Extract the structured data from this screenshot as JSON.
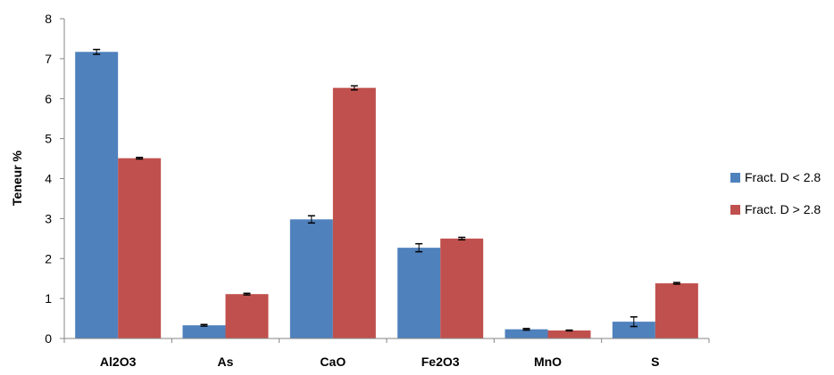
{
  "chart_data": {
    "type": "bar",
    "title": "",
    "xlabel": "",
    "ylabel": "Teneur %",
    "ylim": [
      0,
      8
    ],
    "yticks": [
      0,
      1,
      2,
      3,
      4,
      5,
      6,
      7,
      8
    ],
    "grid": false,
    "legend_position": "right",
    "categories": [
      "Al2O3",
      "As",
      "CaO",
      "Fe2O3",
      "MnO",
      "S"
    ],
    "series": [
      {
        "name": "Fract. D < 2.8",
        "color": "#4F81BD",
        "values": [
          7.17,
          0.33,
          2.98,
          2.27,
          0.23,
          0.42
        ],
        "errors": [
          0.06,
          0.02,
          0.09,
          0.1,
          0.02,
          0.12
        ]
      },
      {
        "name": "Fract. D > 2.8",
        "color": "#C0504D",
        "values": [
          4.51,
          1.11,
          6.27,
          2.5,
          0.2,
          1.38
        ],
        "errors": [
          0.02,
          0.02,
          0.05,
          0.03,
          0.01,
          0.02
        ]
      }
    ]
  }
}
